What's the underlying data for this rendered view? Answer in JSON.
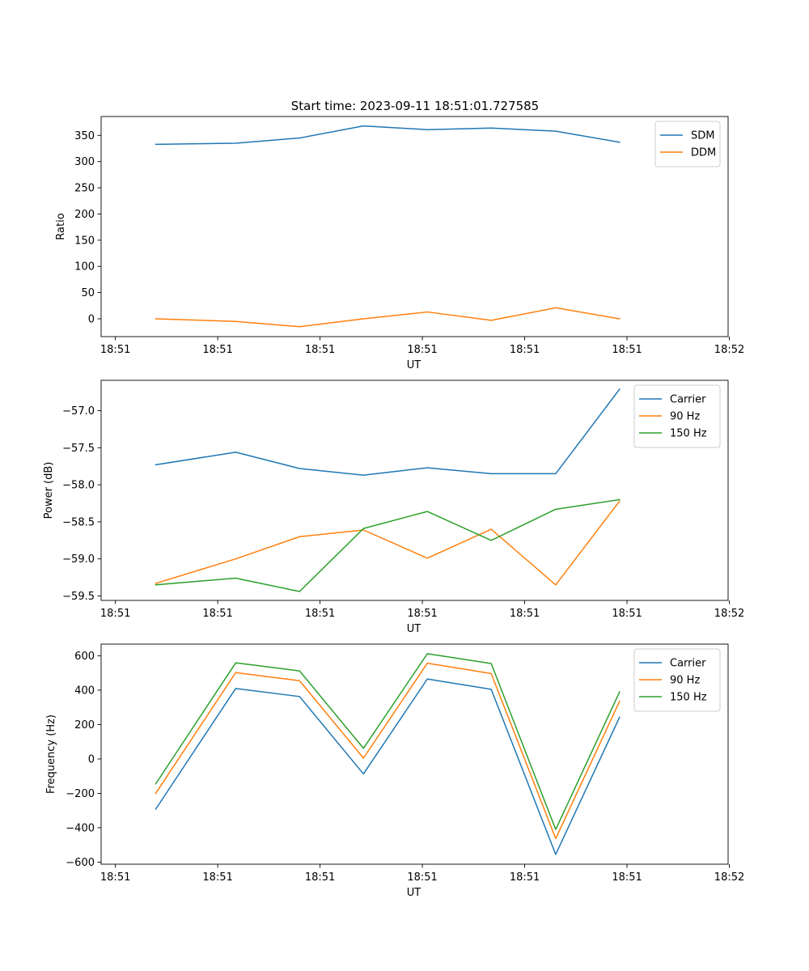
{
  "title": "Start time: 2023-09-11 18:51:01.727585",
  "colors": {
    "c0": "#1f77b4",
    "c1": "#ff7f0e",
    "c2": "#2ca02c",
    "axis": "#000000"
  },
  "chart_data": [
    {
      "type": "line",
      "title": "Start time: 2023-09-11 18:51:01.727585",
      "xlabel": "UT",
      "ylabel": "Ratio",
      "xlim": [
        -0.23,
        9.88
      ],
      "ylim": [
        -34,
        386
      ],
      "x": [
        0.65,
        1.94,
        2.97,
        4.0,
        5.03,
        6.06,
        7.1,
        8.13
      ],
      "x_ticks": [
        0,
        1.65,
        3.3,
        4.95,
        6.6,
        8.25,
        9.9
      ],
      "x_tick_labels": [
        "18:51",
        "18:51",
        "18:51",
        "18:51",
        "18:51",
        "18:51",
        "18:52"
      ],
      "y_ticks": [
        0,
        50,
        100,
        150,
        200,
        250,
        300,
        350
      ],
      "y_tick_labels": [
        "0",
        "50",
        "100",
        "150",
        "200",
        "250",
        "300",
        "350"
      ],
      "series": [
        {
          "name": "SDM",
          "color": "#1f77b4",
          "values": [
            333,
            335,
            345,
            368,
            361,
            364,
            358,
            337
          ]
        },
        {
          "name": "DDM",
          "color": "#ff7f0e",
          "values": [
            0,
            -5,
            -15,
            0,
            13,
            -3,
            21,
            0
          ]
        }
      ],
      "legend": "top-right"
    },
    {
      "type": "line",
      "xlabel": "UT",
      "ylabel": "Power (dB)",
      "xlim": [
        -0.23,
        9.88
      ],
      "ylim": [
        -59.56,
        -56.59
      ],
      "x": [
        0.65,
        1.94,
        2.97,
        4.0,
        5.03,
        6.06,
        7.1,
        8.13
      ],
      "x_ticks": [
        0,
        1.65,
        3.3,
        4.95,
        6.6,
        8.25,
        9.9
      ],
      "x_tick_labels": [
        "18:51",
        "18:51",
        "18:51",
        "18:51",
        "18:51",
        "18:51",
        "18:52"
      ],
      "y_ticks": [
        -59.5,
        -59.0,
        -58.5,
        -58.0,
        -57.5,
        -57.0
      ],
      "y_tick_labels": [
        "−59.5",
        "−59.0",
        "−58.5",
        "−58.0",
        "−57.5",
        "−57.0"
      ],
      "series": [
        {
          "name": "Carrier",
          "color": "#1f77b4",
          "values": [
            -57.73,
            -57.56,
            -57.78,
            -57.87,
            -57.77,
            -57.85,
            -57.85,
            -56.71
          ]
        },
        {
          "name": "90 Hz",
          "color": "#ff7f0e",
          "values": [
            -59.33,
            -59.0,
            -58.7,
            -58.61,
            -58.99,
            -58.6,
            -59.35,
            -58.22
          ]
        },
        {
          "name": "150 Hz",
          "color": "#2ca02c",
          "values": [
            -59.35,
            -59.26,
            -59.44,
            -58.59,
            -58.36,
            -58.75,
            -58.33,
            -58.2
          ]
        }
      ],
      "legend": "top-right"
    },
    {
      "type": "line",
      "xlabel": "UT",
      "ylabel": "Frequency (Hz)",
      "xlim": [
        -0.23,
        9.88
      ],
      "ylim": [
        -612,
        668
      ],
      "x": [
        0.65,
        1.94,
        2.97,
        4.0,
        5.03,
        6.06,
        7.1,
        8.13
      ],
      "x_ticks": [
        0,
        1.65,
        3.3,
        4.95,
        6.6,
        8.25,
        9.9
      ],
      "x_tick_labels": [
        "18:51",
        "18:51",
        "18:51",
        "18:51",
        "18:51",
        "18:51",
        "18:52"
      ],
      "y_ticks": [
        -600,
        -400,
        -200,
        0,
        200,
        400,
        600
      ],
      "y_tick_labels": [
        "−600",
        "−400",
        "−200",
        "0",
        "200",
        "400",
        "600"
      ],
      "series": [
        {
          "name": "Carrier",
          "color": "#1f77b4",
          "values": [
            -292,
            410,
            363,
            -87,
            465,
            405,
            -555,
            243
          ]
        },
        {
          "name": "90 Hz",
          "color": "#ff7f0e",
          "values": [
            -200,
            502,
            455,
            5,
            557,
            497,
            -463,
            335
          ]
        },
        {
          "name": "150 Hz",
          "color": "#2ca02c",
          "values": [
            -145,
            559,
            512,
            62,
            612,
            555,
            -410,
            390
          ]
        }
      ],
      "legend": "top-right"
    }
  ]
}
